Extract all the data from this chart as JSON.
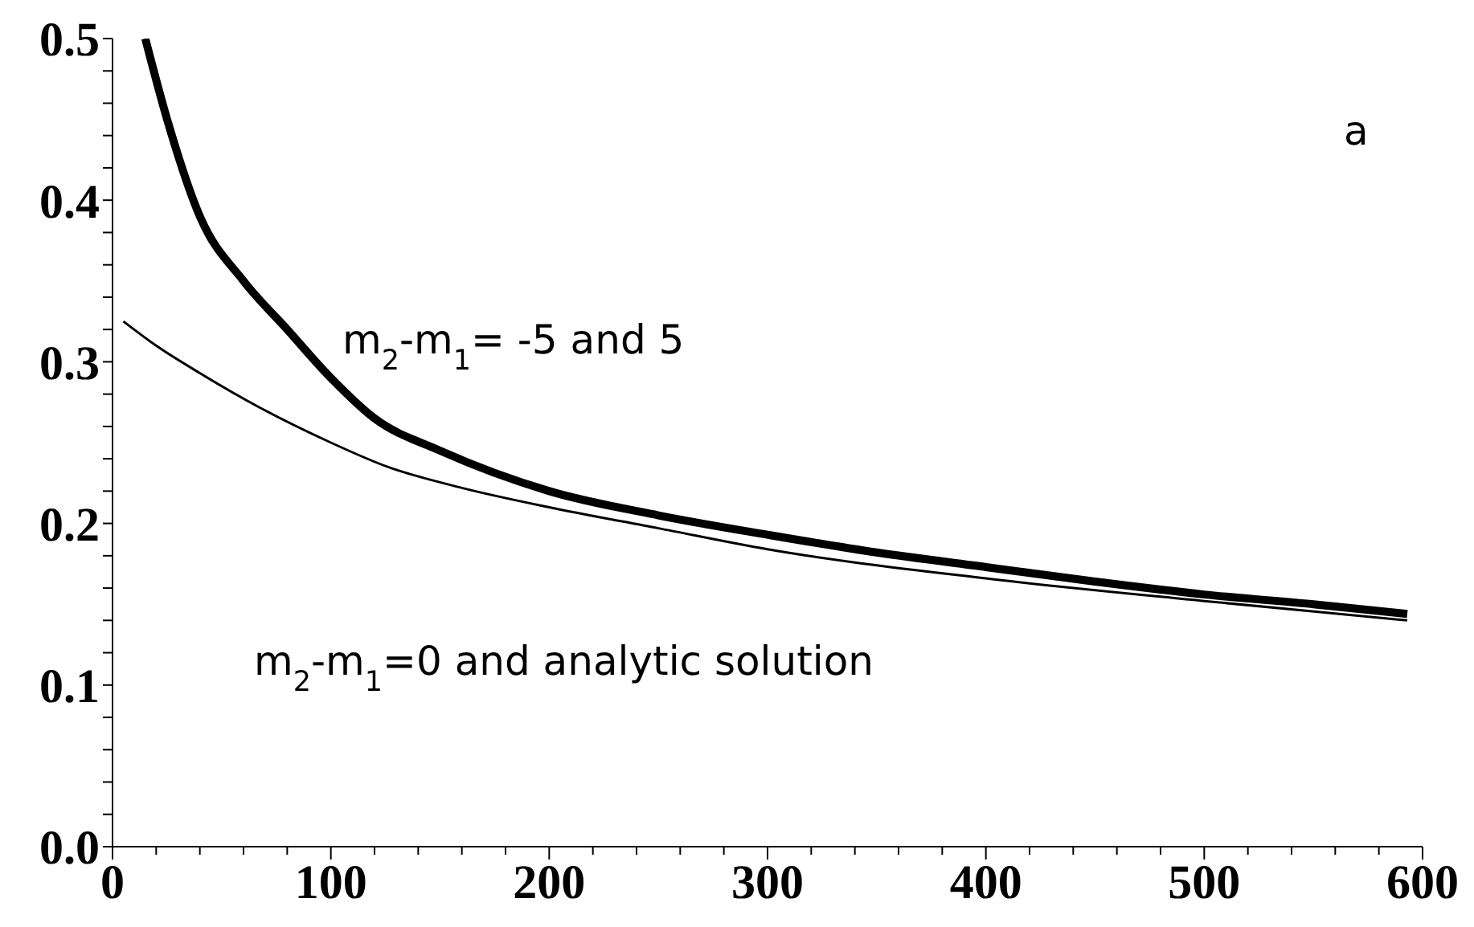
{
  "chart_data": {
    "type": "line",
    "xlim": [
      0,
      600
    ],
    "ylim": [
      0,
      0.5
    ],
    "xticks": [
      0,
      {
        "value": 20,
        "label": null
      },
      {
        "value": 40,
        "label": null
      },
      {
        "value": 60,
        "label": null
      },
      {
        "value": 80,
        "label": null
      },
      100,
      {
        "value": 120,
        "label": null
      },
      {
        "value": 140,
        "label": null
      },
      {
        "value": 160,
        "label": null
      },
      {
        "value": 180,
        "label": null
      },
      200,
      {
        "value": 220,
        "label": null
      },
      {
        "value": 240,
        "label": null
      },
      {
        "value": 260,
        "label": null
      },
      {
        "value": 280,
        "label": null
      },
      300,
      {
        "value": 320,
        "label": null
      },
      {
        "value": 340,
        "label": null
      },
      {
        "value": 360,
        "label": null
      },
      {
        "value": 380,
        "label": null
      },
      400,
      {
        "value": 420,
        "label": null
      },
      {
        "value": 440,
        "label": null
      },
      {
        "value": 460,
        "label": null
      },
      {
        "value": 480,
        "label": null
      },
      500,
      {
        "value": 520,
        "label": null
      },
      {
        "value": 540,
        "label": null
      },
      {
        "value": 560,
        "label": null
      },
      {
        "value": 580,
        "label": null
      },
      600
    ],
    "yticks": [
      {
        "value": 0,
        "label": "0.0"
      },
      {
        "value": 0.02,
        "label": null
      },
      {
        "value": 0.04,
        "label": null
      },
      {
        "value": 0.06,
        "label": null
      },
      {
        "value": 0.08,
        "label": null
      },
      0.1,
      {
        "value": 0.12,
        "label": null
      },
      {
        "value": 0.14,
        "label": null
      },
      {
        "value": 0.16,
        "label": null
      },
      {
        "value": 0.18,
        "label": null
      },
      0.2,
      {
        "value": 0.22,
        "label": null
      },
      {
        "value": 0.24,
        "label": null
      },
      {
        "value": 0.26,
        "label": null
      },
      {
        "value": 0.28,
        "label": null
      },
      0.3,
      {
        "value": 0.32,
        "label": null
      },
      {
        "value": 0.34,
        "label": null
      },
      {
        "value": 0.36,
        "label": null
      },
      {
        "value": 0.38,
        "label": null
      },
      0.4,
      {
        "value": 0.42,
        "label": null
      },
      {
        "value": 0.44,
        "label": null
      },
      {
        "value": 0.46,
        "label": null
      },
      {
        "value": 0.48,
        "label": null
      },
      0.5
    ],
    "grid": false,
    "legend": false,
    "marker": "none",
    "line_style": "solid",
    "series": [
      {
        "color": "#000000",
        "x": [
          15,
          25,
          40,
          60,
          80,
          100,
          120,
          150,
          200,
          250,
          300,
          350,
          400,
          450,
          500,
          550,
          593
        ],
        "values": [
          0.5,
          0.45,
          0.39,
          0.35,
          0.32,
          0.29,
          0.265,
          0.245,
          0.22,
          0.205,
          0.193,
          0.182,
          0.173,
          0.164,
          0.156,
          0.15,
          0.144
        ]
      },
      {
        "color": "#000000",
        "x": [
          5,
          20,
          40,
          67,
          100,
          126,
          160,
          200,
          250,
          300,
          400,
          500,
          593
        ],
        "values": [
          0.325,
          0.31,
          0.293,
          0.272,
          0.25,
          0.235,
          0.222,
          0.21,
          0.197,
          0.184,
          0.166,
          0.152,
          0.14
        ]
      }
    ],
    "annotations": [
      "m$_{2}$-m$_{1}$= -5 and 5",
      "m$_{2}$-m$_{1}$=0 and analytic solution",
      "a"
    ]
  }
}
